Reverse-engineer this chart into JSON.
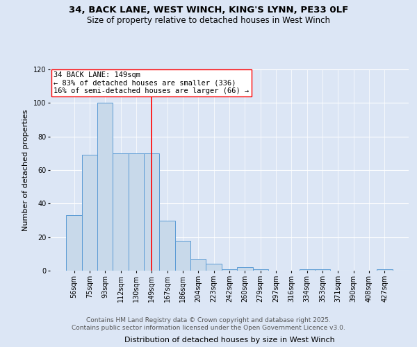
{
  "title_line1": "34, BACK LANE, WEST WINCH, KING'S LYNN, PE33 0LF",
  "title_line2": "Size of property relative to detached houses in West Winch",
  "xlabel": "Distribution of detached houses by size in West Winch",
  "ylabel": "Number of detached properties",
  "categories": [
    "56sqm",
    "75sqm",
    "93sqm",
    "112sqm",
    "130sqm",
    "149sqm",
    "167sqm",
    "186sqm",
    "204sqm",
    "223sqm",
    "242sqm",
    "260sqm",
    "279sqm",
    "297sqm",
    "316sqm",
    "334sqm",
    "353sqm",
    "371sqm",
    "390sqm",
    "408sqm",
    "427sqm"
  ],
  "values": [
    33,
    69,
    100,
    70,
    70,
    70,
    30,
    18,
    7,
    4,
    1,
    2,
    1,
    0,
    0,
    1,
    1,
    0,
    0,
    0,
    1
  ],
  "bar_color": "#c8d9ea",
  "bar_edge_color": "#5b9bd5",
  "ref_line_x": 5,
  "ref_line_color": "red",
  "annotation_text": "34 BACK LANE: 149sqm\n← 83% of detached houses are smaller (336)\n16% of semi-detached houses are larger (66) →",
  "ylim": [
    0,
    120
  ],
  "yticks": [
    0,
    20,
    40,
    60,
    80,
    100,
    120
  ],
  "background_color": "#dce6f5",
  "plot_bg_color": "#dce6f5",
  "footer_line1": "Contains HM Land Registry data © Crown copyright and database right 2025.",
  "footer_line2": "Contains public sector information licensed under the Open Government Licence v3.0.",
  "title_fontsize": 9.5,
  "subtitle_fontsize": 8.5,
  "xlabel_fontsize": 8,
  "ylabel_fontsize": 8,
  "tick_fontsize": 7,
  "annotation_fontsize": 7.5,
  "footer_fontsize": 6.5
}
